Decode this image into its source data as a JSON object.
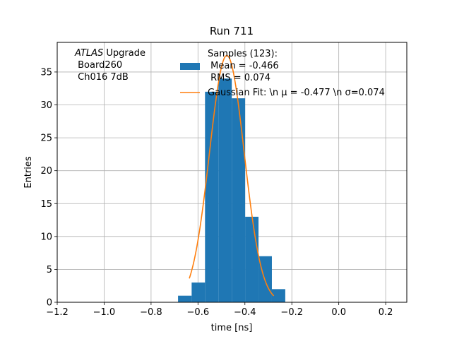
{
  "chart_data": {
    "type": "bar",
    "title": "Run 711",
    "xlabel": "time [ns]",
    "ylabel": "Entries",
    "xlim": [
      -1.2,
      0.29
    ],
    "ylim": [
      0,
      39.5
    ],
    "grid": true,
    "x_ticks": [
      -1.2,
      -1.0,
      -0.8,
      -0.6,
      -0.4,
      -0.2,
      0.0,
      0.2
    ],
    "x_tick_labels": [
      "−1.2",
      "−1.0",
      "−0.8",
      "−0.6",
      "−0.4",
      "−0.2",
      "0.0",
      "0.2"
    ],
    "y_ticks": [
      0,
      5,
      10,
      15,
      20,
      25,
      30,
      35
    ],
    "y_tick_labels": [
      "0",
      "5",
      "10",
      "15",
      "20",
      "25",
      "30",
      "35"
    ],
    "histogram": {
      "name": "Samples (123):\n Mean = -0.466\n RMS = 0.074",
      "color": "#1f77b4",
      "bins": [
        {
          "x0": -0.685,
          "x1": -0.627,
          "count": 1
        },
        {
          "x0": -0.627,
          "x1": -0.57,
          "count": 3
        },
        {
          "x0": -0.57,
          "x1": -0.513,
          "count": 32
        },
        {
          "x0": -0.513,
          "x1": -0.456,
          "count": 34
        },
        {
          "x0": -0.456,
          "x1": -0.399,
          "count": 31
        },
        {
          "x0": -0.399,
          "x1": -0.342,
          "count": 13
        },
        {
          "x0": -0.342,
          "x1": -0.285,
          "count": 7
        },
        {
          "x0": -0.285,
          "x1": -0.228,
          "count": 2
        }
      ]
    },
    "fit": {
      "name": "Gaussian Fit: \\n μ = -0.477 \\n σ=0.074",
      "color": "#ff7f0e",
      "mu": -0.477,
      "sigma": 0.074,
      "amplitude": 37.5,
      "x_range": [
        -0.637,
        -0.277
      ]
    },
    "annotation": {
      "line1_italic": "ATLAS",
      "line1_rest": " Upgrade",
      "line2": " Board260",
      "line3": " Ch016 7dB"
    },
    "legend": {
      "position": "top-center",
      "hist_label_lines": [
        "Samples (123):",
        " Mean = -0.466",
        " RMS = 0.074"
      ],
      "fit_label": "Gaussian Fit: \\n μ = -0.477 \\n σ=0.074"
    }
  }
}
